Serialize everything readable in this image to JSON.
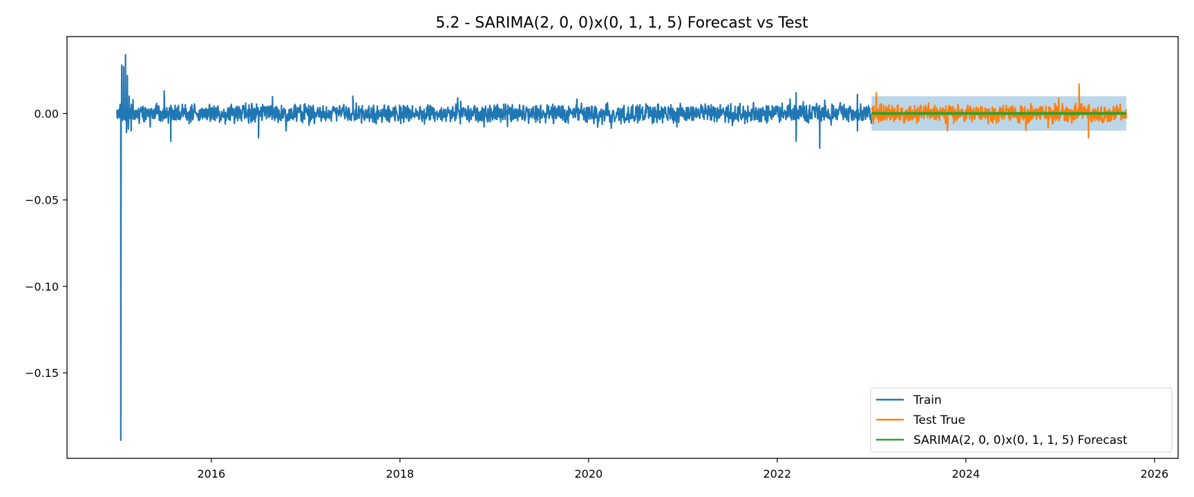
{
  "chart_data": {
    "type": "line",
    "title": "5.2 - SARIMA(2, 0, 0)x(0, 1, 1, 5) Forecast vs Test",
    "xlabel": "",
    "ylabel": "",
    "xlim": [
      2014.47,
      2026.25
    ],
    "ylim": [
      -0.1995,
      0.0445
    ],
    "x_ticks": [
      2016,
      2018,
      2020,
      2022,
      2024,
      2026
    ],
    "x_tick_labels": [
      "2016",
      "2018",
      "2020",
      "2022",
      "2024",
      "2026"
    ],
    "y_ticks": [
      0.0,
      -0.05,
      -0.1,
      -0.15
    ],
    "y_tick_labels": [
      "0.00",
      "−0.05",
      "−0.10",
      "−0.15"
    ],
    "grid": false,
    "legend_position": "lower right",
    "series": [
      {
        "name": "Train",
        "color": "#1f77b4",
        "x_range": [
          2015.0,
          2023.0
        ],
        "points": [
          [
            2015.0,
            0.0
          ],
          [
            2015.02,
            0.0
          ],
          [
            2015.03,
            0.001
          ],
          [
            2015.04,
            -0.189
          ],
          [
            2015.05,
            0.028
          ],
          [
            2015.06,
            -0.004
          ],
          [
            2015.07,
            0.027
          ],
          [
            2015.08,
            -0.003
          ],
          [
            2015.09,
            0.034
          ],
          [
            2015.1,
            -0.011
          ],
          [
            2015.11,
            0.022
          ],
          [
            2015.12,
            -0.009
          ],
          [
            2015.13,
            0.01
          ],
          [
            2015.15,
            -0.01
          ],
          [
            2015.17,
            0.008
          ],
          [
            2015.5,
            0.013
          ],
          [
            2015.57,
            -0.016
          ],
          [
            2016.5,
            -0.014
          ],
          [
            2017.5,
            0.01
          ],
          [
            2022.2,
            0.012
          ],
          [
            2022.2,
            -0.016
          ],
          [
            2022.45,
            -0.02
          ],
          [
            2022.85,
            0.011
          ],
          [
            2022.85,
            -0.01
          ]
        ],
        "noise_amplitude": 0.0045
      },
      {
        "name": "Test True",
        "color": "#ff7f0e",
        "x_range": [
          2023.0,
          2025.7
        ],
        "points": [
          [
            2023.05,
            0.012
          ],
          [
            2025.2,
            0.017
          ],
          [
            2025.3,
            -0.014
          ]
        ],
        "noise_amplitude": 0.0045
      },
      {
        "name": "SARIMA(2, 0, 0)x(0, 1, 1, 5) Forecast",
        "color": "#2ca02c",
        "x_range": [
          2023.0,
          2025.7
        ],
        "value": 0.0
      }
    ],
    "confidence_band": {
      "color": "#1f77b4",
      "opacity": 0.3,
      "x_range": [
        2023.0,
        2025.7
      ],
      "lower": -0.01,
      "upper": 0.01
    }
  }
}
